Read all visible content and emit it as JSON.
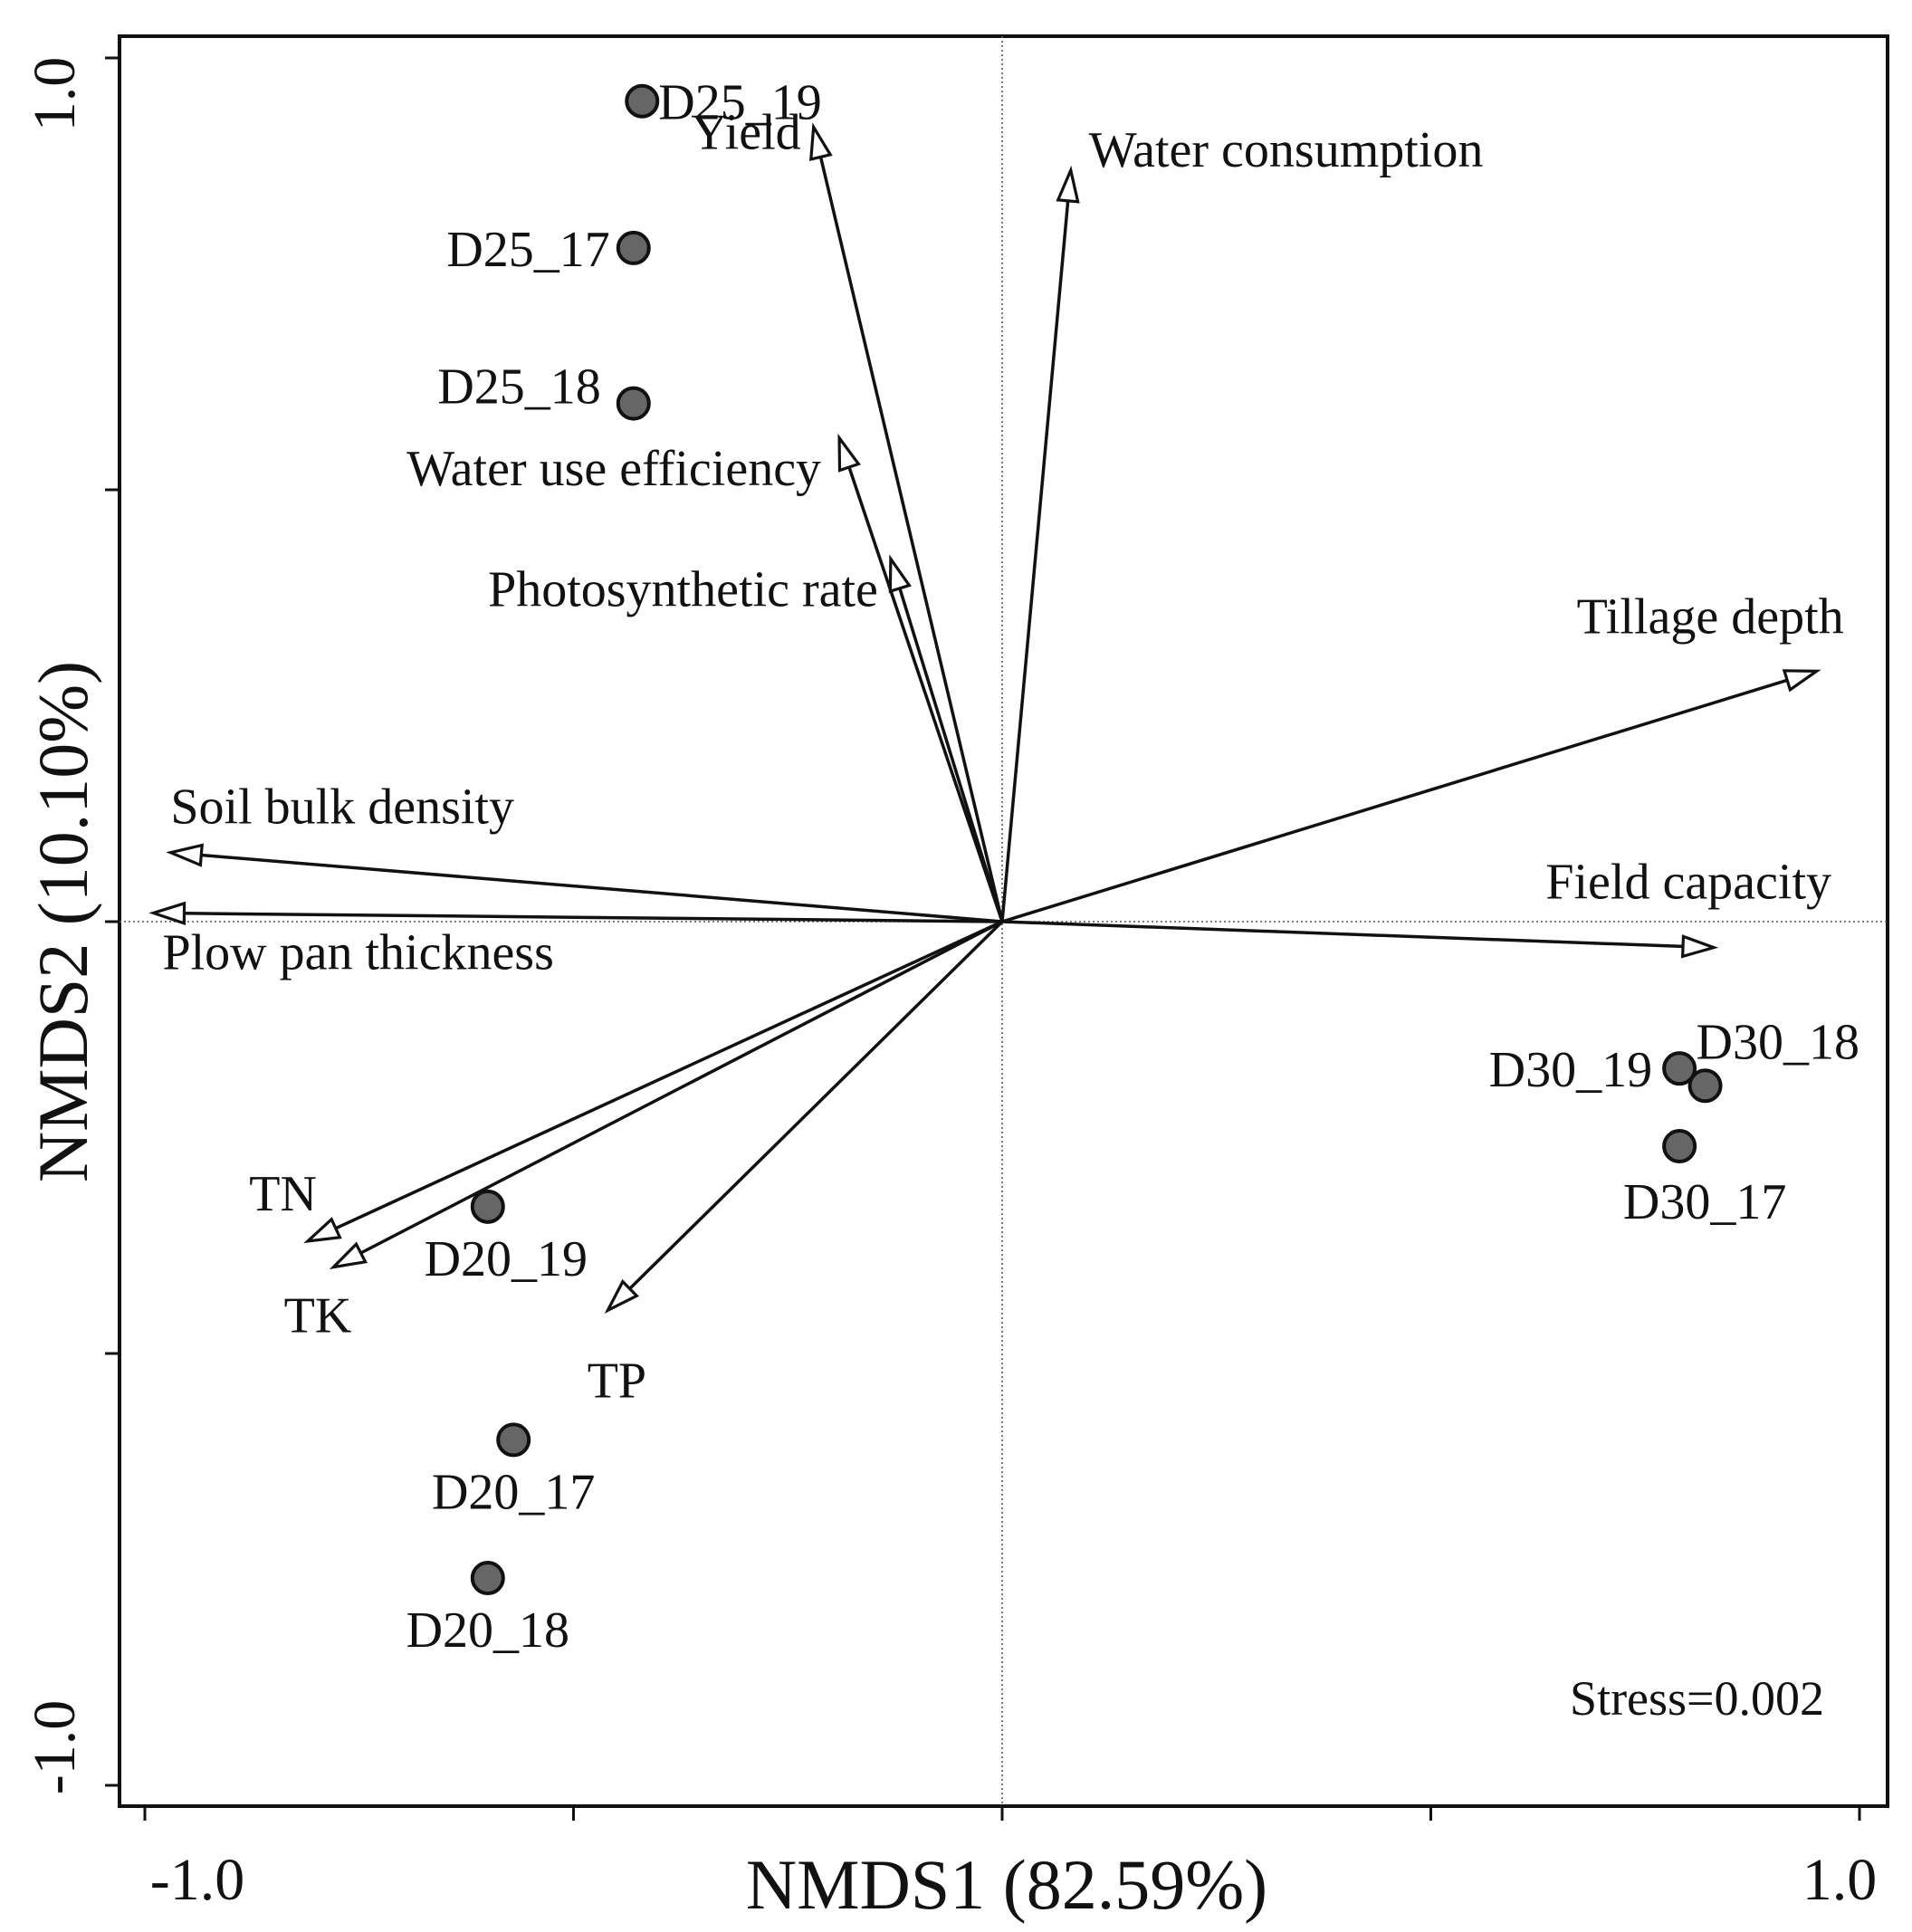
{
  "colors": {
    "point_fill": "#666666",
    "stroke": "#111111",
    "background": "#ffffff"
  },
  "chart_data": {
    "type": "scatter",
    "title": "",
    "xlabel": "NMDS1 (82.59%)",
    "ylabel": "NMDS2 (10.10%)",
    "xlim": [
      -1.0,
      1.0
    ],
    "ylim": [
      -1.0,
      1.0
    ],
    "x_tick_labels": [
      "-1.0",
      "1.0"
    ],
    "y_tick_labels": [
      "1.0",
      "-1.0"
    ],
    "grid": false,
    "zero_lines": true,
    "annotation": "Stress=0.002",
    "points": [
      {
        "label": "D25_19",
        "x": -0.42,
        "y": 0.95
      },
      {
        "label": "D25_17",
        "x": -0.43,
        "y": 0.78
      },
      {
        "label": "D25_18",
        "x": -0.43,
        "y": 0.6
      },
      {
        "label": "D30_19",
        "x": 0.79,
        "y": -0.17
      },
      {
        "label": "D30_18",
        "x": 0.82,
        "y": -0.19
      },
      {
        "label": "D30_17",
        "x": 0.79,
        "y": -0.26
      },
      {
        "label": "D20_19",
        "x": -0.6,
        "y": -0.33
      },
      {
        "label": "D20_17",
        "x": -0.57,
        "y": -0.6
      },
      {
        "label": "D20_18",
        "x": -0.6,
        "y": -0.76
      }
    ],
    "vectors": [
      {
        "label": "Yield",
        "x": -0.22,
        "y": 0.92
      },
      {
        "label": "Water consumption",
        "x": 0.08,
        "y": 0.87
      },
      {
        "label": "Water use efficiency",
        "x": -0.19,
        "y": 0.56
      },
      {
        "label": "Photosynthetic rate",
        "x": -0.13,
        "y": 0.42
      },
      {
        "label": "Tillage depth",
        "x": 0.95,
        "y": 0.29
      },
      {
        "label": "Soil bulk density",
        "x": -0.97,
        "y": 0.08
      },
      {
        "label": "Plow pan thickness",
        "x": -0.99,
        "y": 0.01
      },
      {
        "label": "Field capacity",
        "x": 0.83,
        "y": -0.03
      },
      {
        "label": "TN",
        "x": -0.81,
        "y": -0.37
      },
      {
        "label": "TK",
        "x": -0.78,
        "y": -0.4
      },
      {
        "label": "TP",
        "x": -0.46,
        "y": -0.45
      }
    ]
  }
}
